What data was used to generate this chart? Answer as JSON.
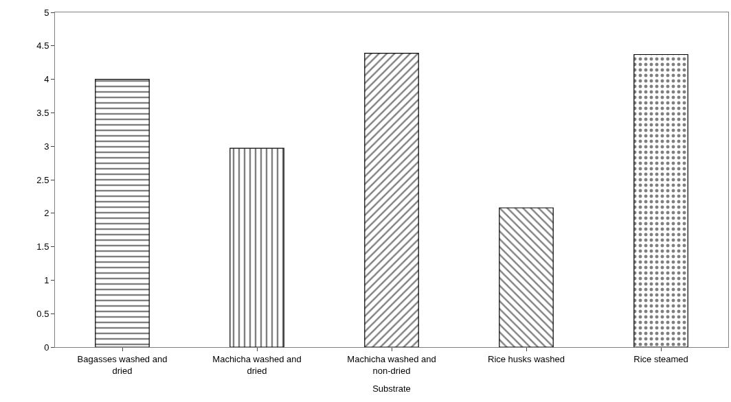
{
  "chart_data": {
    "type": "bar",
    "xlabel": "Substrate",
    "categories": [
      "Bagasses washed and dried",
      "Machicha washed and dried",
      "Machicha washed and non-dried",
      "Rice husks washed",
      "Rice steamed"
    ],
    "values": [
      4.0,
      2.97,
      4.39,
      2.08,
      4.37
    ],
    "colors": [
      "#000000",
      "#000000",
      "#000000",
      "#000000",
      "#000000"
    ],
    "ylim": [
      0,
      5
    ],
    "yticks": [
      0,
      0.5,
      1,
      1.5,
      2,
      2.5,
      3,
      3.5,
      4,
      4.5,
      5
    ]
  }
}
